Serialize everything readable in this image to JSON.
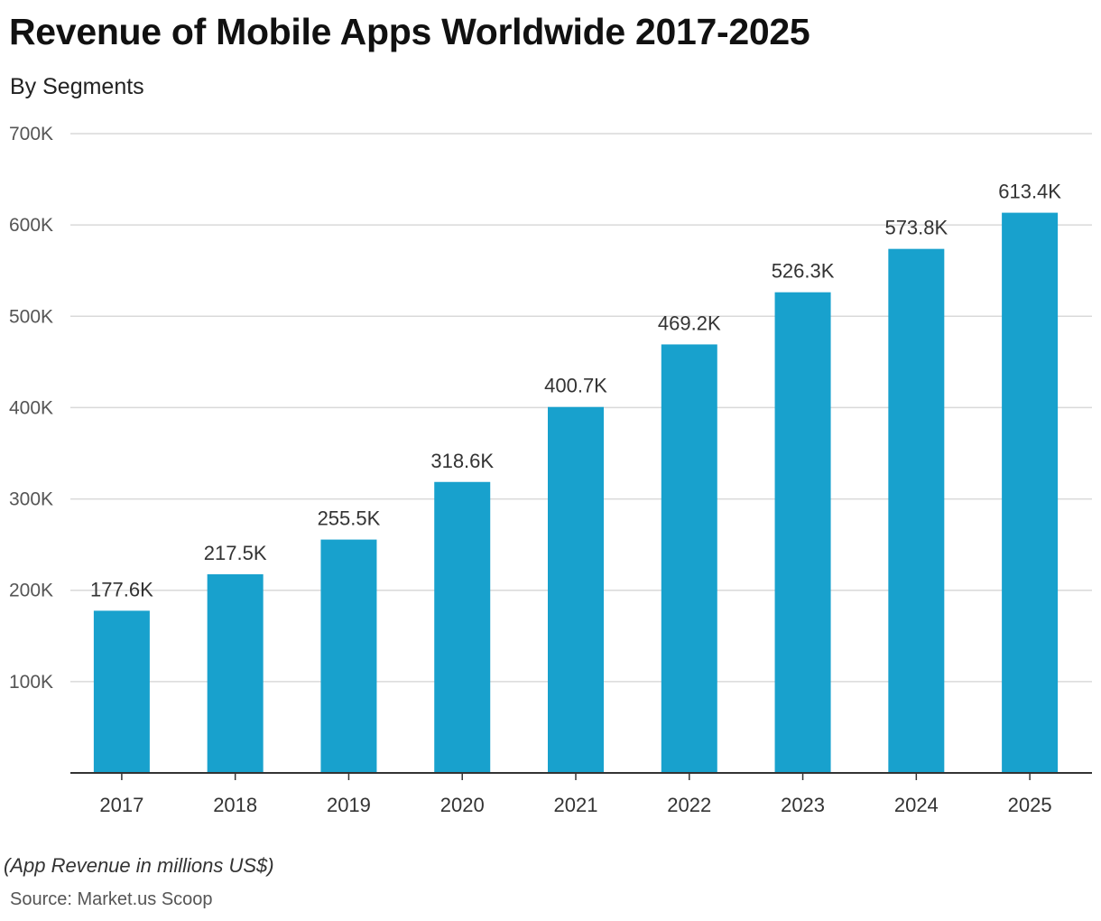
{
  "chart_data": {
    "type": "bar",
    "title": "Revenue of Mobile Apps Worldwide 2017-2025",
    "subtitle": "By Segments",
    "categories": [
      "2017",
      "2018",
      "2019",
      "2020",
      "2021",
      "2022",
      "2023",
      "2024",
      "2025"
    ],
    "values": [
      177.6,
      217.5,
      255.5,
      318.6,
      400.7,
      469.2,
      526.3,
      573.8,
      613.4
    ],
    "data_labels": [
      "177.6K",
      "217.5K",
      "255.5K",
      "318.6K",
      "400.7K",
      "469.2K",
      "526.3K",
      "573.8K",
      "613.4K"
    ],
    "value_unit": "K",
    "ylim": [
      0,
      700
    ],
    "yticks": [
      100,
      200,
      300,
      400,
      500,
      600,
      700
    ],
    "ytick_labels": [
      "100K",
      "200K",
      "300K",
      "400K",
      "500K",
      "600K",
      "700K"
    ],
    "grid": true,
    "xlabel": "",
    "ylabel": "",
    "bar_color": "#18a1cd",
    "note": "App Revenue in millions US$",
    "source": "Source: Market.us Scoop"
  }
}
